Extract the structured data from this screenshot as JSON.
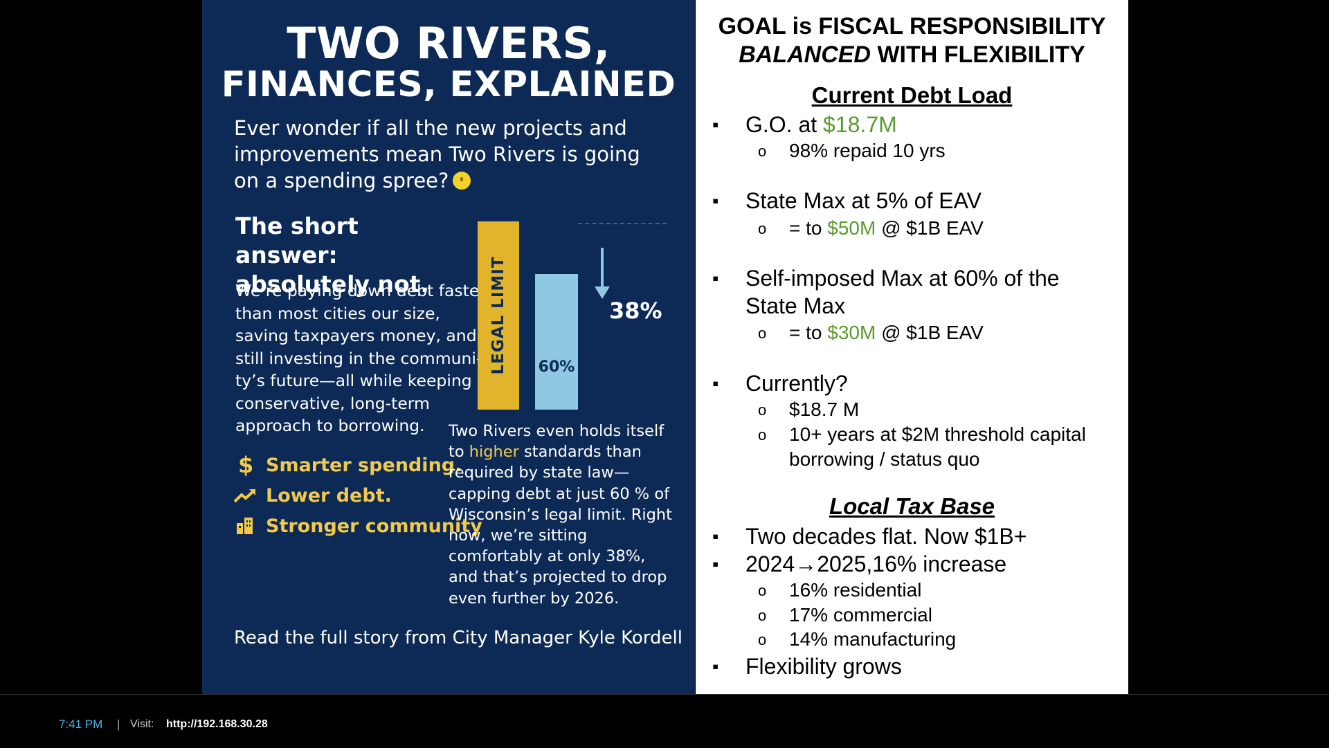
{
  "left": {
    "title_line1": "TWO RIVERS,",
    "title_line2": "FINANCES, EXPLAINED",
    "intro": "Ever wonder if all the new projects and improvements mean Two Rivers is going on a spending spree?",
    "short_answer_line1": "The short answer:",
    "short_answer_line2": "absolutely not.",
    "body": "We’re paying down debt faster than most cities our size, saving taxpayers money, and still investing in the communi- ty’s future—all while keeping a conservative, long-term approach to borrowing.",
    "taglines": [
      {
        "icon": "dollar-icon",
        "text": "Smarter spending."
      },
      {
        "icon": "trend-up-icon",
        "text": "Lower debt."
      },
      {
        "icon": "buildings-icon",
        "text": "Stronger community"
      }
    ],
    "note_pre": "Two Rivers even holds itself to ",
    "note_highlight": "higher",
    "note_post": " standards than required by state law—capping debt at just 60 % of Wisconsin’s legal limit. Right now, we’re sitting comfortably at only 38%, and that’s projected to drop even further by 2026.",
    "cta": "Read the full story from City Manager Kyle Kordell",
    "highlight_color": "#f2c94c"
  },
  "chart_data": {
    "type": "bar",
    "categories": [
      "LEGAL LIMIT",
      "60%"
    ],
    "values": [
      100,
      60
    ],
    "current_level_label": "38%",
    "current_level_percent": 38,
    "colors": [
      "#e1b42b",
      "#8ec8e3"
    ]
  },
  "right": {
    "goal_line1": "GOAL is FISCAL RESPONSIBILITY",
    "goal_line2_italic": "BALANCED",
    "goal_line2_rest": " WITH FLEXIBILITY",
    "section1": "Current Debt Load",
    "go_pre": "G.O. at ",
    "go_amount": "$18.7M",
    "go_sub": "98% repaid 10 yrs",
    "state_max": "State Max at 5% of EAV",
    "state_sub_pre": "= to ",
    "state_sub_amount": "$50M",
    "state_sub_post": " @ $1B EAV",
    "self_max": "Self-imposed Max at 60% of the State Max",
    "self_sub_pre": "= to ",
    "self_sub_amount": "$30M",
    "self_sub_post": " @ $1B EAV",
    "currently": "Currently?",
    "currently_sub1": "$18.7 M",
    "currently_sub2": "10+ years at $2M threshold capital borrowing / status quo",
    "section2": "Local Tax Base",
    "tax1": "Two decades flat. Now $1B+",
    "tax2": "2024→2025,16% increase",
    "tax2_subs": [
      "16% residential",
      "17% commercial",
      "14% manufacturing"
    ],
    "tax3": "Flexibility grows",
    "green": "#5a9a2d"
  },
  "footer": {
    "time": "7:41 PM",
    "separator": "|",
    "visit_label": "Visit:",
    "url": "http://192.168.30.28"
  }
}
